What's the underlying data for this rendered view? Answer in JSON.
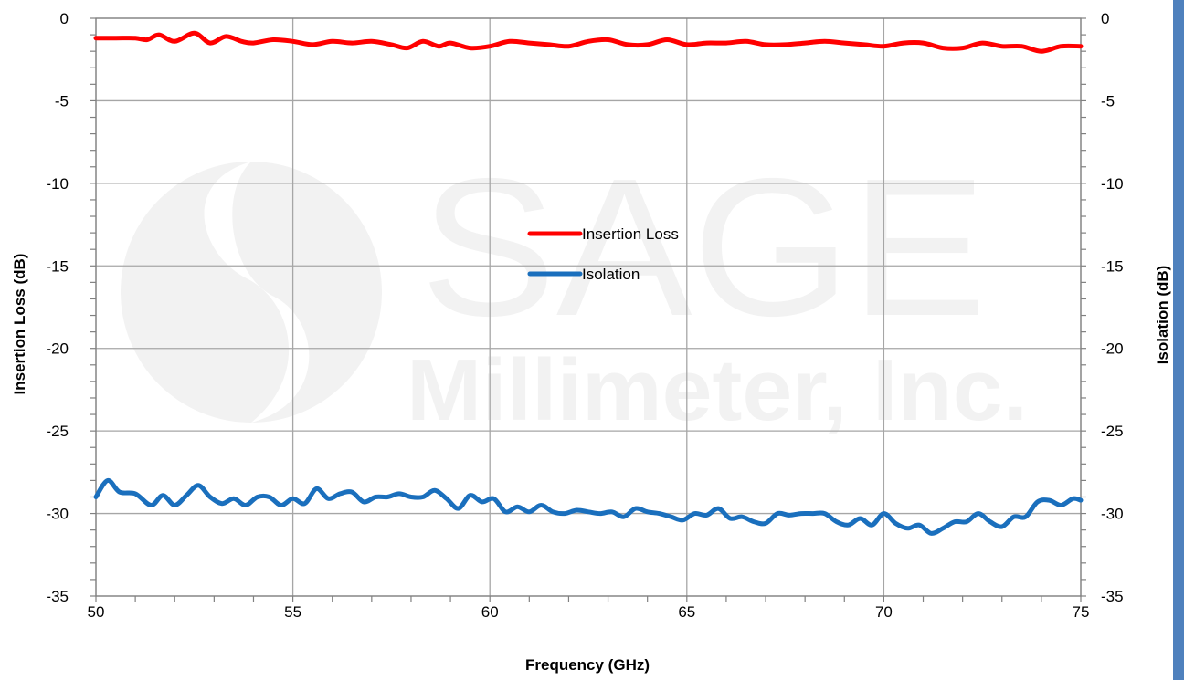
{
  "chart_data": {
    "type": "line",
    "xlabel": "Frequency (GHz)",
    "ylabel_left": "Insertion Loss (dB)",
    "ylabel_right": "Isolation (dB)",
    "xlim": [
      50,
      75
    ],
    "ylim": [
      -35,
      0
    ],
    "x_ticks": [
      "50",
      "55",
      "60",
      "65",
      "70",
      "75"
    ],
    "y_ticks": [
      "0",
      "-5",
      "-10",
      "-15",
      "-20",
      "-25",
      "-30",
      "-35"
    ],
    "grid": true,
    "legend_position": "center",
    "series": [
      {
        "name": "Insertion Loss",
        "color": "#ff0000",
        "x": [
          50,
          50.5,
          51,
          51.3,
          51.6,
          52,
          52.5,
          52.9,
          53.3,
          53.7,
          54,
          54.5,
          55,
          55.5,
          56,
          56.5,
          57,
          57.5,
          57.9,
          58.3,
          58.7,
          59,
          59.5,
          60,
          60.5,
          61,
          61.5,
          62,
          62.5,
          63,
          63.5,
          64,
          64.5,
          65,
          65.5,
          66,
          66.5,
          67,
          67.5,
          68,
          68.5,
          69,
          69.5,
          70,
          70.5,
          71,
          71.5,
          72,
          72.5,
          73,
          73.5,
          74,
          74.5,
          75
        ],
        "values": [
          -1.2,
          -1.2,
          -1.2,
          -1.3,
          -1.0,
          -1.4,
          -0.9,
          -1.5,
          -1.1,
          -1.4,
          -1.5,
          -1.3,
          -1.4,
          -1.6,
          -1.4,
          -1.5,
          -1.4,
          -1.6,
          -1.8,
          -1.4,
          -1.7,
          -1.5,
          -1.8,
          -1.7,
          -1.4,
          -1.5,
          -1.6,
          -1.7,
          -1.4,
          -1.3,
          -1.6,
          -1.6,
          -1.3,
          -1.6,
          -1.5,
          -1.5,
          -1.4,
          -1.6,
          -1.6,
          -1.5,
          -1.4,
          -1.5,
          -1.6,
          -1.7,
          -1.5,
          -1.5,
          -1.8,
          -1.8,
          -1.5,
          -1.7,
          -1.7,
          -2.0,
          -1.7,
          -1.7
        ]
      },
      {
        "name": "Isolation",
        "color": "#1a6fbd",
        "x": [
          50,
          50.3,
          50.6,
          51,
          51.4,
          51.7,
          52,
          52.3,
          52.6,
          52.9,
          53.2,
          53.5,
          53.8,
          54.1,
          54.4,
          54.7,
          55,
          55.3,
          55.6,
          55.9,
          56.2,
          56.5,
          56.8,
          57.1,
          57.4,
          57.7,
          58,
          58.3,
          58.6,
          58.9,
          59.2,
          59.5,
          59.8,
          60.1,
          60.4,
          60.7,
          61,
          61.3,
          61.6,
          61.9,
          62.2,
          62.5,
          62.8,
          63.1,
          63.4,
          63.7,
          64,
          64.3,
          64.6,
          64.9,
          65.2,
          65.5,
          65.8,
          66.1,
          66.4,
          66.7,
          67,
          67.3,
          67.6,
          67.9,
          68.2,
          68.5,
          68.8,
          69.1,
          69.4,
          69.7,
          70,
          70.3,
          70.6,
          70.9,
          71.2,
          71.5,
          71.8,
          72.1,
          72.4,
          72.7,
          73,
          73.3,
          73.6,
          73.9,
          74.2,
          74.5,
          74.8,
          75
        ],
        "values": [
          -29.0,
          -28.0,
          -28.7,
          -28.8,
          -29.5,
          -28.9,
          -29.5,
          -28.9,
          -28.3,
          -29.0,
          -29.4,
          -29.1,
          -29.5,
          -29.0,
          -29.0,
          -29.5,
          -29.1,
          -29.4,
          -28.5,
          -29.1,
          -28.8,
          -28.7,
          -29.3,
          -29.0,
          -29.0,
          -28.8,
          -29.0,
          -29.0,
          -28.6,
          -29.1,
          -29.7,
          -28.9,
          -29.3,
          -29.1,
          -29.9,
          -29.6,
          -29.9,
          -29.5,
          -29.9,
          -30.0,
          -29.8,
          -29.9,
          -30.0,
          -29.9,
          -30.2,
          -29.7,
          -29.9,
          -30.0,
          -30.2,
          -30.4,
          -30.0,
          -30.1,
          -29.7,
          -30.3,
          -30.2,
          -30.5,
          -30.6,
          -30.0,
          -30.1,
          -30.0,
          -30.0,
          -30.0,
          -30.5,
          -30.7,
          -30.3,
          -30.7,
          -30.0,
          -30.6,
          -30.9,
          -30.7,
          -31.2,
          -30.9,
          -30.5,
          -30.5,
          -30.0,
          -30.5,
          -30.8,
          -30.2,
          -30.2,
          -29.3,
          -29.2,
          -29.5,
          -29.1,
          -29.2
        ]
      }
    ],
    "watermark": {
      "line1": "SAGE",
      "line2": "Millimeter, Inc."
    }
  },
  "colors": {
    "grid": "#a6a6a6",
    "axis": "#808080",
    "sidebar_accent": "#4f81bd",
    "watermark": "#f2f2f2"
  }
}
